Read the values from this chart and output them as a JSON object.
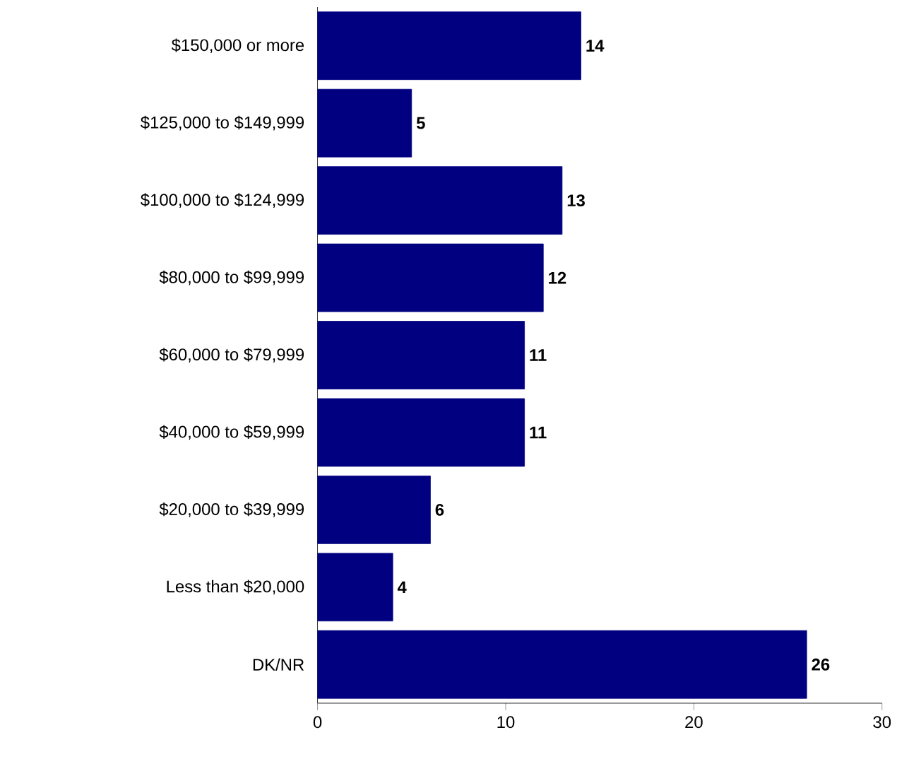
{
  "chart_data": {
    "type": "bar",
    "orientation": "horizontal",
    "categories": [
      "$150,000 or more",
      "$125,000 to $149,999",
      "$100,000 to $124,999",
      "$80,000 to $99,999",
      "$60,000 to $79,999",
      "$40,000 to $59,999",
      "$20,000 to $39,999",
      "Less than $20,000",
      "DK/NR"
    ],
    "values": [
      14,
      5,
      13,
      12,
      11,
      11,
      6,
      4,
      26
    ],
    "color": "#000080",
    "xlim": [
      0,
      30
    ],
    "xticks": [
      0,
      10,
      20,
      30
    ],
    "data_labels": true
  }
}
